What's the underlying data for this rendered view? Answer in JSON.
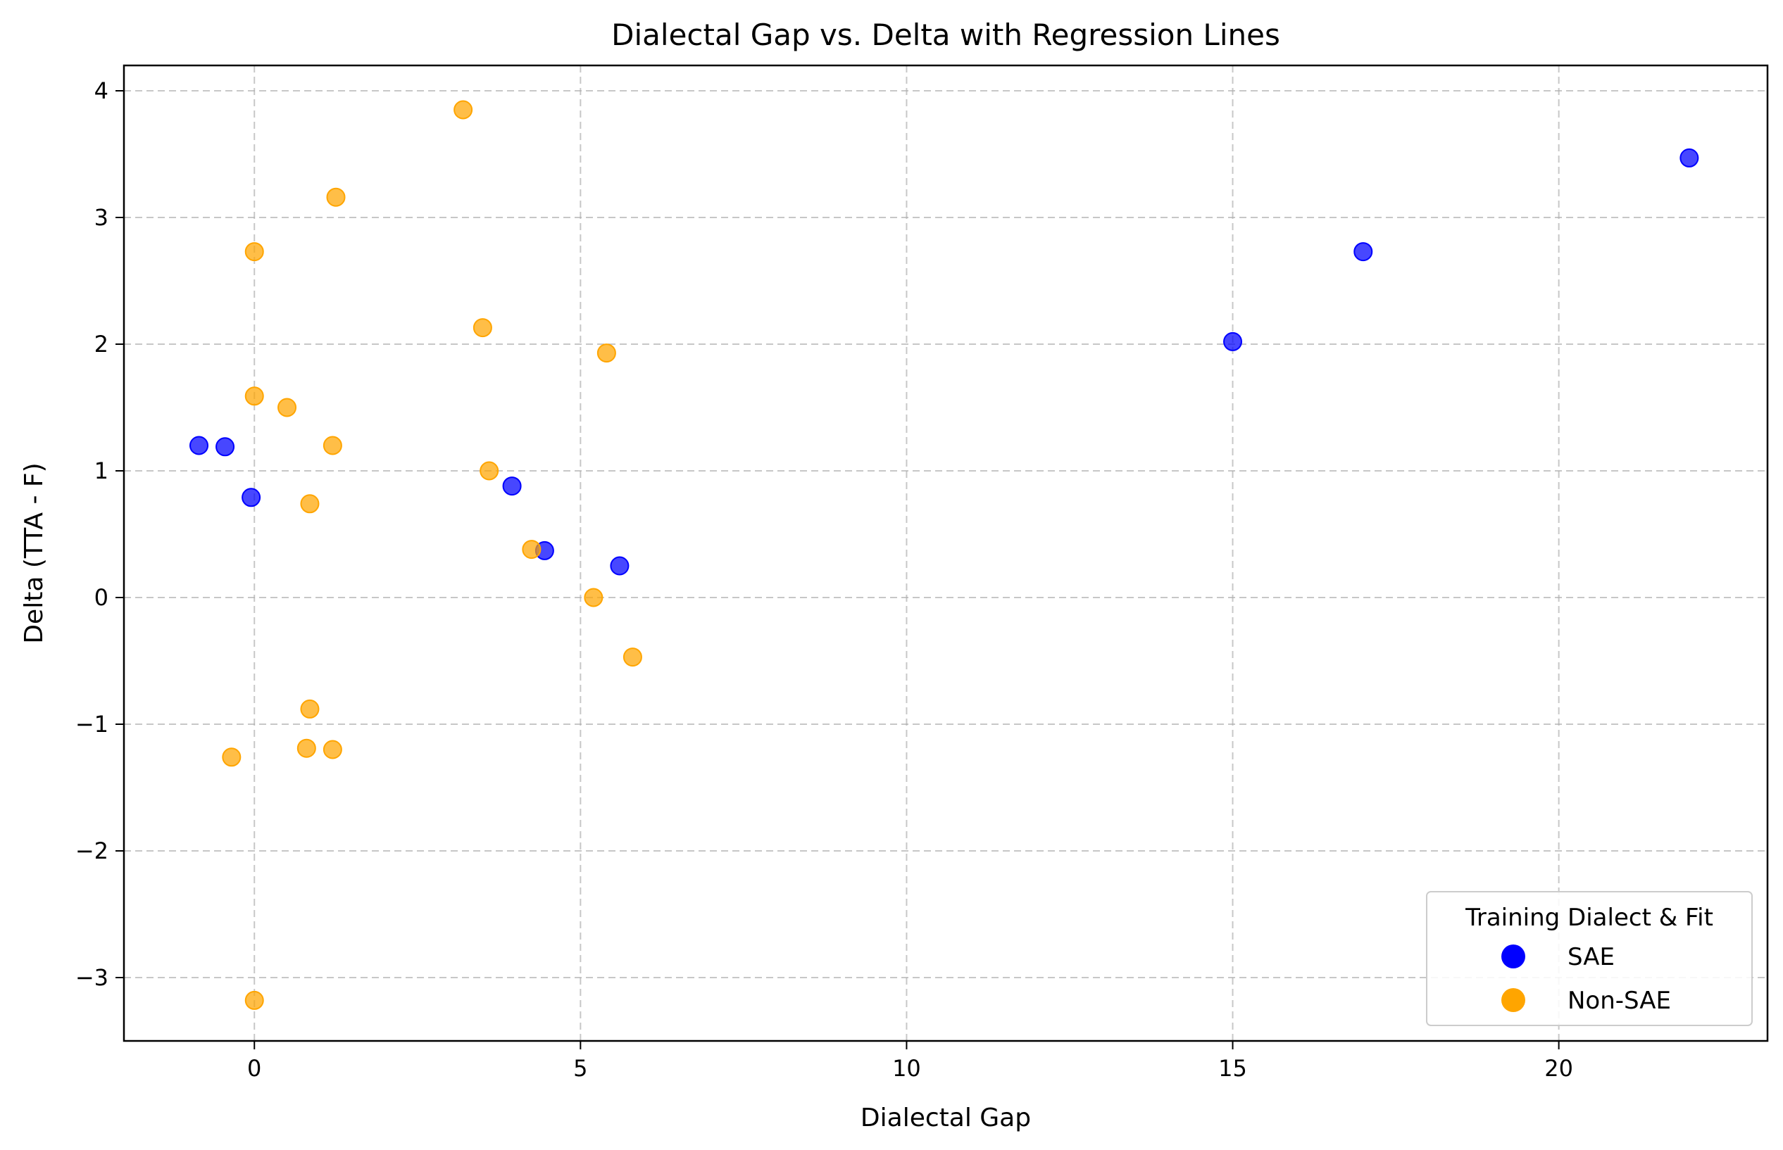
{
  "chart_data": {
    "type": "scatter",
    "title": "Dialectal Gap vs. Delta with Regression Lines",
    "xlabel": "Dialectal Gap",
    "ylabel": "Delta (TTA - F)",
    "xlim": [
      -2,
      23.2
    ],
    "ylim": [
      -3.5,
      4.2
    ],
    "xticks": [
      0,
      5,
      10,
      15,
      20
    ],
    "xtick_labels": [
      "0",
      "5",
      "10",
      "15",
      "20"
    ],
    "yticks": [
      -3,
      -2,
      -1,
      0,
      1,
      2,
      3,
      4
    ],
    "ytick_labels": [
      "−3",
      "−2",
      "−1",
      "0",
      "1",
      "2",
      "3",
      "4"
    ],
    "grid": true,
    "legend": {
      "title": "Training Dialect & Fit",
      "position": "lower-right"
    },
    "series": [
      {
        "name": "SAE",
        "color": "#0000ff",
        "x": [
          -0.85,
          -0.45,
          -0.05,
          3.95,
          4.45,
          5.6,
          15.0,
          17.0,
          22.0
        ],
        "y": [
          1.2,
          1.19,
          0.79,
          0.88,
          0.37,
          0.25,
          2.02,
          2.73,
          3.47
        ]
      },
      {
        "name": "Non-SAE",
        "color": "#ffa500",
        "x": [
          3.2,
          1.25,
          0.0,
          3.5,
          5.4,
          0.0,
          0.5,
          1.2,
          3.6,
          0.85,
          4.25,
          5.2,
          5.8,
          0.85,
          0.8,
          1.2,
          -0.35,
          0.0
        ],
        "y": [
          3.85,
          3.16,
          2.73,
          2.13,
          1.93,
          1.59,
          1.5,
          1.2,
          1.0,
          0.74,
          0.38,
          0.0,
          -0.47,
          -0.88,
          -1.19,
          -1.2,
          -1.26,
          -3.18
        ]
      }
    ]
  }
}
